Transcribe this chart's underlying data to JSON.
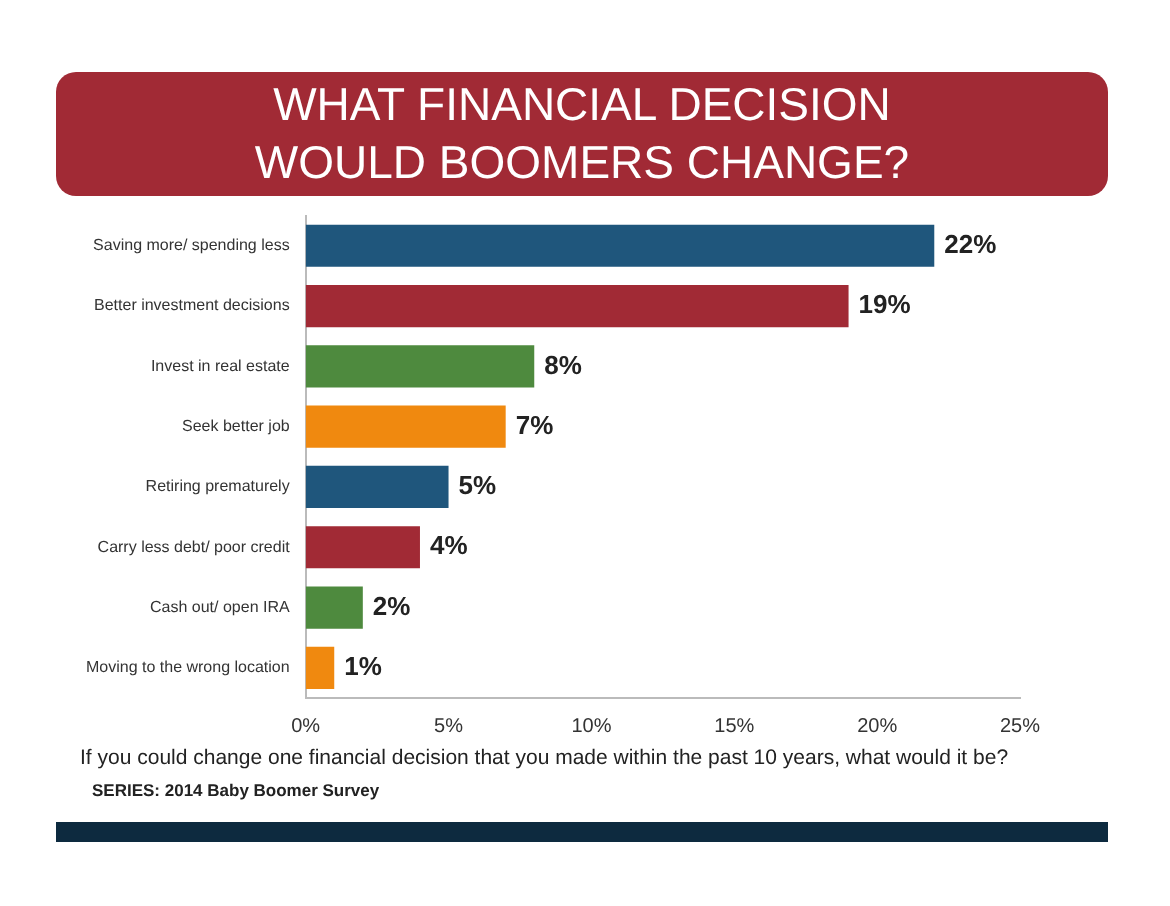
{
  "chart_data": {
    "type": "bar",
    "orientation": "horizontal",
    "title": "WHAT FINANCIAL DECISION\nWOULD BOOMERS CHANGE?",
    "categories": [
      "Saving more/ spending less",
      "Better investment decisions",
      "Invest in real estate",
      "Seek better job",
      "Retiring prematurely",
      "Carry less debt/ poor credit",
      "Cash out/ open IRA",
      "Moving to the wrong location"
    ],
    "values": [
      22,
      19,
      8,
      7,
      5,
      4,
      2,
      1
    ],
    "value_labels": [
      "22%",
      "19%",
      "8%",
      "7%",
      "5%",
      "4%",
      "2%",
      "1%"
    ],
    "colors": [
      "#1f567c",
      "#a12a35",
      "#4e8a3e",
      "#f0890f",
      "#1f567c",
      "#a12a35",
      "#4e8a3e",
      "#f0890f"
    ],
    "xlim": [
      0,
      25
    ],
    "xticks": [
      {
        "value": 0,
        "label": "0%"
      },
      {
        "value": 5,
        "label": "5%"
      },
      {
        "value": 10,
        "label": "10%"
      },
      {
        "value": 15,
        "label": "15%"
      },
      {
        "value": 20,
        "label": "20%"
      },
      {
        "value": 25,
        "label": "25%"
      }
    ],
    "grid": false,
    "legend": false,
    "annotations": [
      "If you could change one financial decision that you made within the past 10 years, what would it be?",
      "SERIES: 2014 Baby Boomer Survey"
    ]
  }
}
